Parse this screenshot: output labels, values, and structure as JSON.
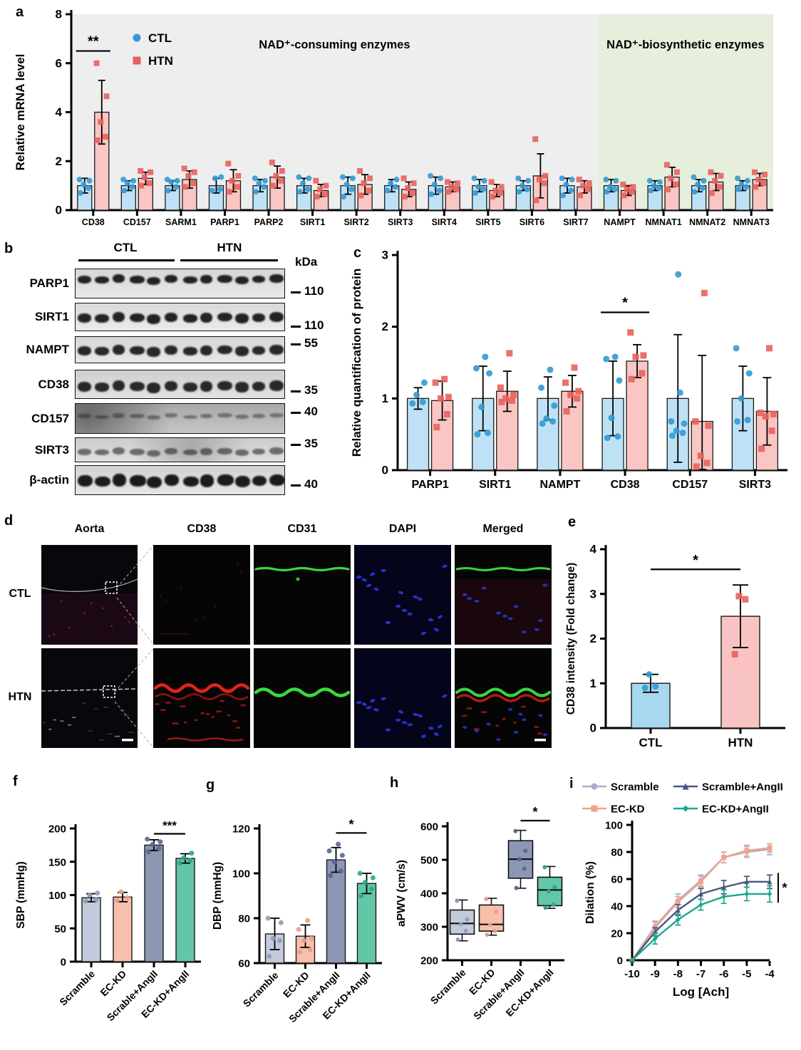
{
  "panels": {
    "a": "a",
    "b": "b",
    "c": "c",
    "d": "d",
    "e": "e",
    "f": "f",
    "g": "g",
    "h": "h",
    "i": "i"
  },
  "panel_b": {
    "groups": [
      "CTL",
      "HTN"
    ],
    "kda_label": "kDa",
    "lanes_per_group": 6,
    "rows": [
      {
        "protein": "PARP1",
        "kda": "110"
      },
      {
        "protein": "SIRT1",
        "kda": "110"
      },
      {
        "protein": "NAMPT",
        "kda": "55"
      },
      {
        "protein": "CD38",
        "kda": "35"
      },
      {
        "protein": "CD157",
        "kda": "40"
      },
      {
        "protein": "SIRT3",
        "kda": "35"
      },
      {
        "protein": "β-actin",
        "kda": "40"
      }
    ]
  },
  "panel_d": {
    "columns": [
      "Aorta",
      "CD38",
      "CD31",
      "DAPI",
      "Merged"
    ],
    "row_labels": [
      "CTL",
      "HTN"
    ]
  },
  "chart_data": [
    {
      "id": "a",
      "type": "grouped_bar",
      "ylabel": "Relative mRNA level",
      "ylim": [
        0,
        8
      ],
      "yticks": [
        0,
        2,
        4,
        6,
        8
      ],
      "categories": [
        "CD38",
        "CD157",
        "SARM1",
        "PARP1",
        "PARP2",
        "SIRT1",
        "SIRT2",
        "SIRT3",
        "SIRT4",
        "SIRT5",
        "SIRT6",
        "SIRT7",
        "NAMPT",
        "NMNAT1",
        "NMNAT2",
        "NMNAT3"
      ],
      "regions": [
        {
          "label": "NAD⁺-consuming enzymes",
          "from": 0,
          "to": 11,
          "color": "#eeeeee"
        },
        {
          "label": "NAD⁺-biosynthetic enzymes",
          "from": 12,
          "to": 15,
          "color": "#e5efdc"
        }
      ],
      "series": [
        {
          "name": "CTL",
          "marker": "circle",
          "fill": "#bfe1f6",
          "point_color": "#3399d4",
          "values": [
            1,
            1,
            1,
            1,
            1,
            1,
            1,
            1,
            1,
            1,
            1,
            1,
            1,
            1,
            1,
            1
          ],
          "errors": [
            0.3,
            0.2,
            0.2,
            0.3,
            0.25,
            0.3,
            0.35,
            0.25,
            0.35,
            0.25,
            0.2,
            0.3,
            0.25,
            0.2,
            0.25,
            0.2
          ],
          "points": [
            [
              0.7,
              0.9,
              1.05,
              1.2,
              1.25
            ],
            [
              0.8,
              0.95,
              1.1,
              1.2,
              1.25
            ],
            [
              0.8,
              0.95,
              1.15,
              1.2,
              1.25
            ],
            [
              0.8,
              0.85,
              1.3,
              1.35
            ],
            [
              0.75,
              0.95,
              1.1,
              1.2,
              1.3
            ],
            [
              0.75,
              0.85,
              1.1,
              1.3,
              1.35
            ],
            [
              0.55,
              0.85,
              1.05,
              1.3,
              1.35
            ],
            [
              0.8,
              0.95,
              1.1,
              1.25
            ],
            [
              0.65,
              0.8,
              1.05,
              1.3,
              1.4
            ],
            [
              0.7,
              0.85,
              0.95,
              1.2,
              1.3
            ],
            [
              0.75,
              0.85,
              1.0,
              1.2,
              1.3
            ],
            [
              0.6,
              0.8,
              1.05,
              1.25,
              1.3
            ],
            [
              0.75,
              0.85,
              0.95,
              1.2,
              1.25
            ],
            [
              0.8,
              0.9,
              1.0,
              1.15,
              1.2
            ],
            [
              0.75,
              0.9,
              1.05,
              1.2,
              1.35
            ],
            [
              0.85,
              0.95,
              1.05,
              1.2,
              1.3
            ]
          ]
        },
        {
          "name": "HTN",
          "marker": "square",
          "fill": "#f9c6c4",
          "point_color": "#e8625c",
          "values": [
            4,
            1.3,
            1.25,
            1.2,
            1.35,
            0.8,
            1.05,
            0.85,
            0.95,
            0.8,
            1.4,
            0.95,
            0.8,
            1.35,
            1.15,
            1.25
          ],
          "errors": [
            1.3,
            0.25,
            0.35,
            0.45,
            0.45,
            0.25,
            0.4,
            0.3,
            0.2,
            0.25,
            0.9,
            0.25,
            0.2,
            0.4,
            0.35,
            0.25
          ],
          "points": [
            [
              2.85,
              3.0,
              3.6,
              4.65,
              6.0
            ],
            [
              1.0,
              1.1,
              1.35,
              1.55,
              1.6
            ],
            [
              0.95,
              1.1,
              1.4,
              1.55,
              1.7
            ],
            [
              0.75,
              0.95,
              1.2,
              1.4,
              1.9
            ],
            [
              1.0,
              1.2,
              1.4,
              1.6,
              1.95
            ],
            [
              0.55,
              0.65,
              0.85,
              1.0,
              1.2
            ],
            [
              0.6,
              0.8,
              1.1,
              1.3,
              1.6
            ],
            [
              0.55,
              0.7,
              0.9,
              1.1,
              1.3
            ],
            [
              0.75,
              0.85,
              0.95,
              1.1,
              1.15
            ],
            [
              0.55,
              0.7,
              0.8,
              0.95,
              1.15
            ],
            [
              0.4,
              1.1,
              1.25,
              1.4,
              2.9
            ],
            [
              0.6,
              0.85,
              1.0,
              1.1,
              1.25
            ],
            [
              0.6,
              0.75,
              0.85,
              0.95,
              1.05
            ],
            [
              0.85,
              1.05,
              1.3,
              1.55,
              1.85
            ],
            [
              0.7,
              0.95,
              1.2,
              1.4,
              1.55
            ],
            [
              0.95,
              1.1,
              1.25,
              1.45,
              1.55
            ]
          ]
        }
      ],
      "significance": [
        {
          "category": "CD38",
          "label": "**"
        }
      ]
    },
    {
      "id": "c",
      "type": "grouped_bar",
      "ylabel": "Relative quantification of protein",
      "ylim": [
        0,
        3
      ],
      "yticks": [
        0,
        1,
        2,
        3
      ],
      "categories": [
        "PARP1",
        "SIRT1",
        "NAMPT",
        "CD38",
        "CD157",
        "SIRT3"
      ],
      "series": [
        {
          "name": "CTL",
          "marker": "circle",
          "fill": "#bfe1f6",
          "point_color": "#3399d4",
          "values": [
            1,
            1,
            1,
            1,
            1,
            1
          ],
          "errors": [
            0.15,
            0.45,
            0.3,
            0.52,
            0.89,
            0.45
          ],
          "points": [
            [
              0.93,
              0.95,
              1.05,
              1.22
            ],
            [
              0.5,
              0.52,
              0.88,
              1.35,
              1.42,
              1.58
            ],
            [
              0.65,
              0.68,
              0.72,
              0.9,
              1.15,
              1.4
            ],
            [
              0.45,
              0.47,
              0.73,
              1.25,
              1.55,
              1.58
            ],
            [
              0.48,
              0.52,
              0.55,
              0.65,
              0.68,
              1.08,
              2.73
            ],
            [
              0.68,
              0.7,
              1.0,
              1.35,
              1.7
            ]
          ]
        },
        {
          "name": "HTN",
          "marker": "square",
          "fill": "#f9c6c4",
          "point_color": "#e8625c",
          "values": [
            0.97,
            1.1,
            1.1,
            1.52,
            0.68,
            0.82
          ],
          "errors": [
            0.27,
            0.28,
            0.22,
            0.23,
            0.92,
            0.47
          ],
          "points": [
            [
              0.6,
              0.78,
              1.0,
              1.02,
              1.22,
              1.27
            ],
            [
              0.95,
              0.97,
              1.0,
              1.05,
              1.15,
              1.63
            ],
            [
              0.82,
              1.0,
              1.05,
              1.1,
              1.22,
              1.43
            ],
            [
              1.27,
              1.35,
              1.58,
              1.6,
              1.92
            ],
            [
              0.05,
              0.1,
              0.2,
              0.62,
              0.68,
              2.47
            ],
            [
              0.3,
              0.55,
              0.75,
              0.78,
              0.8,
              1.7
            ]
          ]
        }
      ],
      "significance": [
        {
          "category": "CD38",
          "label": "*"
        }
      ]
    },
    {
      "id": "e",
      "type": "bar",
      "ylabel": "CD38 intensity (Fold change)",
      "ylim": [
        0,
        4
      ],
      "yticks": [
        0,
        1,
        2,
        3,
        4
      ],
      "categories": [
        "CTL",
        "HTN"
      ],
      "values": [
        1,
        2.5
      ],
      "errors": [
        0.2,
        0.7
      ],
      "colors": [
        "#a8d8f0",
        "#f9c3c3"
      ],
      "point_colors": [
        "#3399d4",
        "#e8625c"
      ],
      "markers": [
        "circle",
        "square"
      ],
      "points": [
        [
          0.9,
          0.93,
          1.2
        ],
        [
          1.65,
          2.88,
          2.95
        ]
      ],
      "significance": [
        {
          "from": 0,
          "to": 1,
          "label": "*"
        }
      ]
    },
    {
      "id": "f",
      "type": "bar",
      "ylabel": "SBP (mmHg)",
      "ylim": [
        0,
        200
      ],
      "yticks": [
        0,
        50,
        100,
        150,
        200
      ],
      "categories": [
        "Scramble",
        "EC-KD",
        "Scrable+AngII",
        "EC-KD+AngII"
      ],
      "values": [
        96,
        97,
        175,
        155
      ],
      "errors": [
        6,
        7,
        8,
        7
      ],
      "colors": [
        "#c3cadb",
        "#f6c0ad",
        "#8b97b3",
        "#63c6a8"
      ],
      "point_colors": [
        "#8e9ab8",
        "#eb9d86",
        "#55688f",
        "#2aa689"
      ],
      "markers": [
        "circle",
        "circle",
        "circle",
        "circle"
      ],
      "points": [
        [
          91,
          93,
          100,
          103
        ],
        [
          92,
          96,
          105
        ],
        [
          165,
          170,
          176,
          180,
          184
        ],
        [
          148,
          152,
          156,
          163
        ]
      ],
      "significance": [
        {
          "from": 2,
          "to": 3,
          "label": "***"
        }
      ]
    },
    {
      "id": "g",
      "type": "bar",
      "ylabel": "DBP (mmHg)",
      "ylim": [
        60,
        120
      ],
      "yticks": [
        60,
        80,
        100,
        120
      ],
      "categories": [
        "Scramble",
        "EC-KD",
        "Scrable+AngII",
        "EC-KD+AngII"
      ],
      "values": [
        73,
        72,
        106,
        95.5
      ],
      "errors": [
        7,
        5,
        5.5,
        4.5
      ],
      "colors": [
        "#c3cadb",
        "#f6c0ad",
        "#8b97b3",
        "#63c6a8"
      ],
      "point_colors": [
        "#8e9ab8",
        "#eb9d86",
        "#55688f",
        "#2aa689"
      ],
      "markers": [
        "circle",
        "circle",
        "circle",
        "circle"
      ],
      "points": [
        [
          63,
          70,
          71,
          78,
          80
        ],
        [
          65,
          66,
          70,
          71,
          75,
          79
        ],
        [
          99,
          101,
          105,
          108,
          110,
          113
        ],
        [
          90,
          93,
          96,
          98,
          100
        ]
      ],
      "significance": [
        {
          "from": 2,
          "to": 3,
          "label": "*"
        }
      ]
    },
    {
      "id": "h",
      "type": "box",
      "ylabel": "aPWV (cm/s)",
      "ylim": [
        200,
        600
      ],
      "yticks": [
        200,
        300,
        400,
        500,
        600
      ],
      "categories": [
        "Scramble",
        "EC-KD",
        "Scrable+AngII",
        "EC-KD+AngII"
      ],
      "colors": [
        "#c3cadb",
        "#f6c0ad",
        "#8b97b3",
        "#63c6a8"
      ],
      "point_colors": [
        "#8e9ab8",
        "#eb9d86",
        "#55688f",
        "#2aa689"
      ],
      "boxes": [
        {
          "min": 258,
          "q1": 278,
          "median": 310,
          "q3": 350,
          "max": 380
        },
        {
          "min": 275,
          "q1": 287,
          "median": 307,
          "q3": 365,
          "max": 385
        },
        {
          "min": 415,
          "q1": 445,
          "median": 502,
          "q3": 557,
          "max": 588
        },
        {
          "min": 355,
          "q1": 363,
          "median": 410,
          "q3": 448,
          "max": 480
        }
      ],
      "points": [
        [
          262,
          288,
          308,
          322,
          378
        ],
        [
          276,
          287,
          306,
          345,
          383
        ],
        [
          416,
          474,
          502,
          527,
          586
        ],
        [
          357,
          366,
          406,
          418,
          478
        ]
      ],
      "significance": [
        {
          "from": 2,
          "to": 3,
          "label": "*"
        }
      ]
    },
    {
      "id": "i",
      "type": "line",
      "ylabel": "Dilation (%)",
      "xlabel": "Log [Ach]",
      "ylim": [
        0,
        100
      ],
      "yticks": [
        0,
        20,
        40,
        60,
        80,
        100
      ],
      "x": [
        -10,
        -9,
        -8,
        -7,
        -6,
        -5,
        -4
      ],
      "series": [
        {
          "name": "Scramble",
          "color": "#a9aecb",
          "marker": "circle",
          "values": [
            0,
            25,
            44,
            59,
            76,
            80,
            82
          ],
          "errors": [
            0,
            4,
            5,
            4,
            4,
            4,
            4
          ]
        },
        {
          "name": "EC-KD",
          "color": "#f0a28e",
          "marker": "square",
          "values": [
            0,
            24,
            43,
            58,
            76,
            81,
            83
          ],
          "errors": [
            0,
            4,
            4,
            4,
            4,
            4,
            3
          ]
        },
        {
          "name": "Scramble+AngII",
          "color": "#44597f",
          "marker": "triangle",
          "values": [
            0,
            21,
            37,
            49,
            54,
            58,
            58
          ],
          "errors": [
            0,
            3,
            4,
            4,
            5,
            4,
            5
          ]
        },
        {
          "name": "EC-KD+AngII",
          "color": "#1ca78b",
          "marker": "diamond",
          "values": [
            0,
            16,
            30,
            41,
            47,
            49,
            49
          ],
          "errors": [
            0,
            4,
            4,
            4,
            5,
            5,
            6
          ]
        }
      ],
      "significance": [
        {
          "label": "*"
        }
      ]
    }
  ]
}
